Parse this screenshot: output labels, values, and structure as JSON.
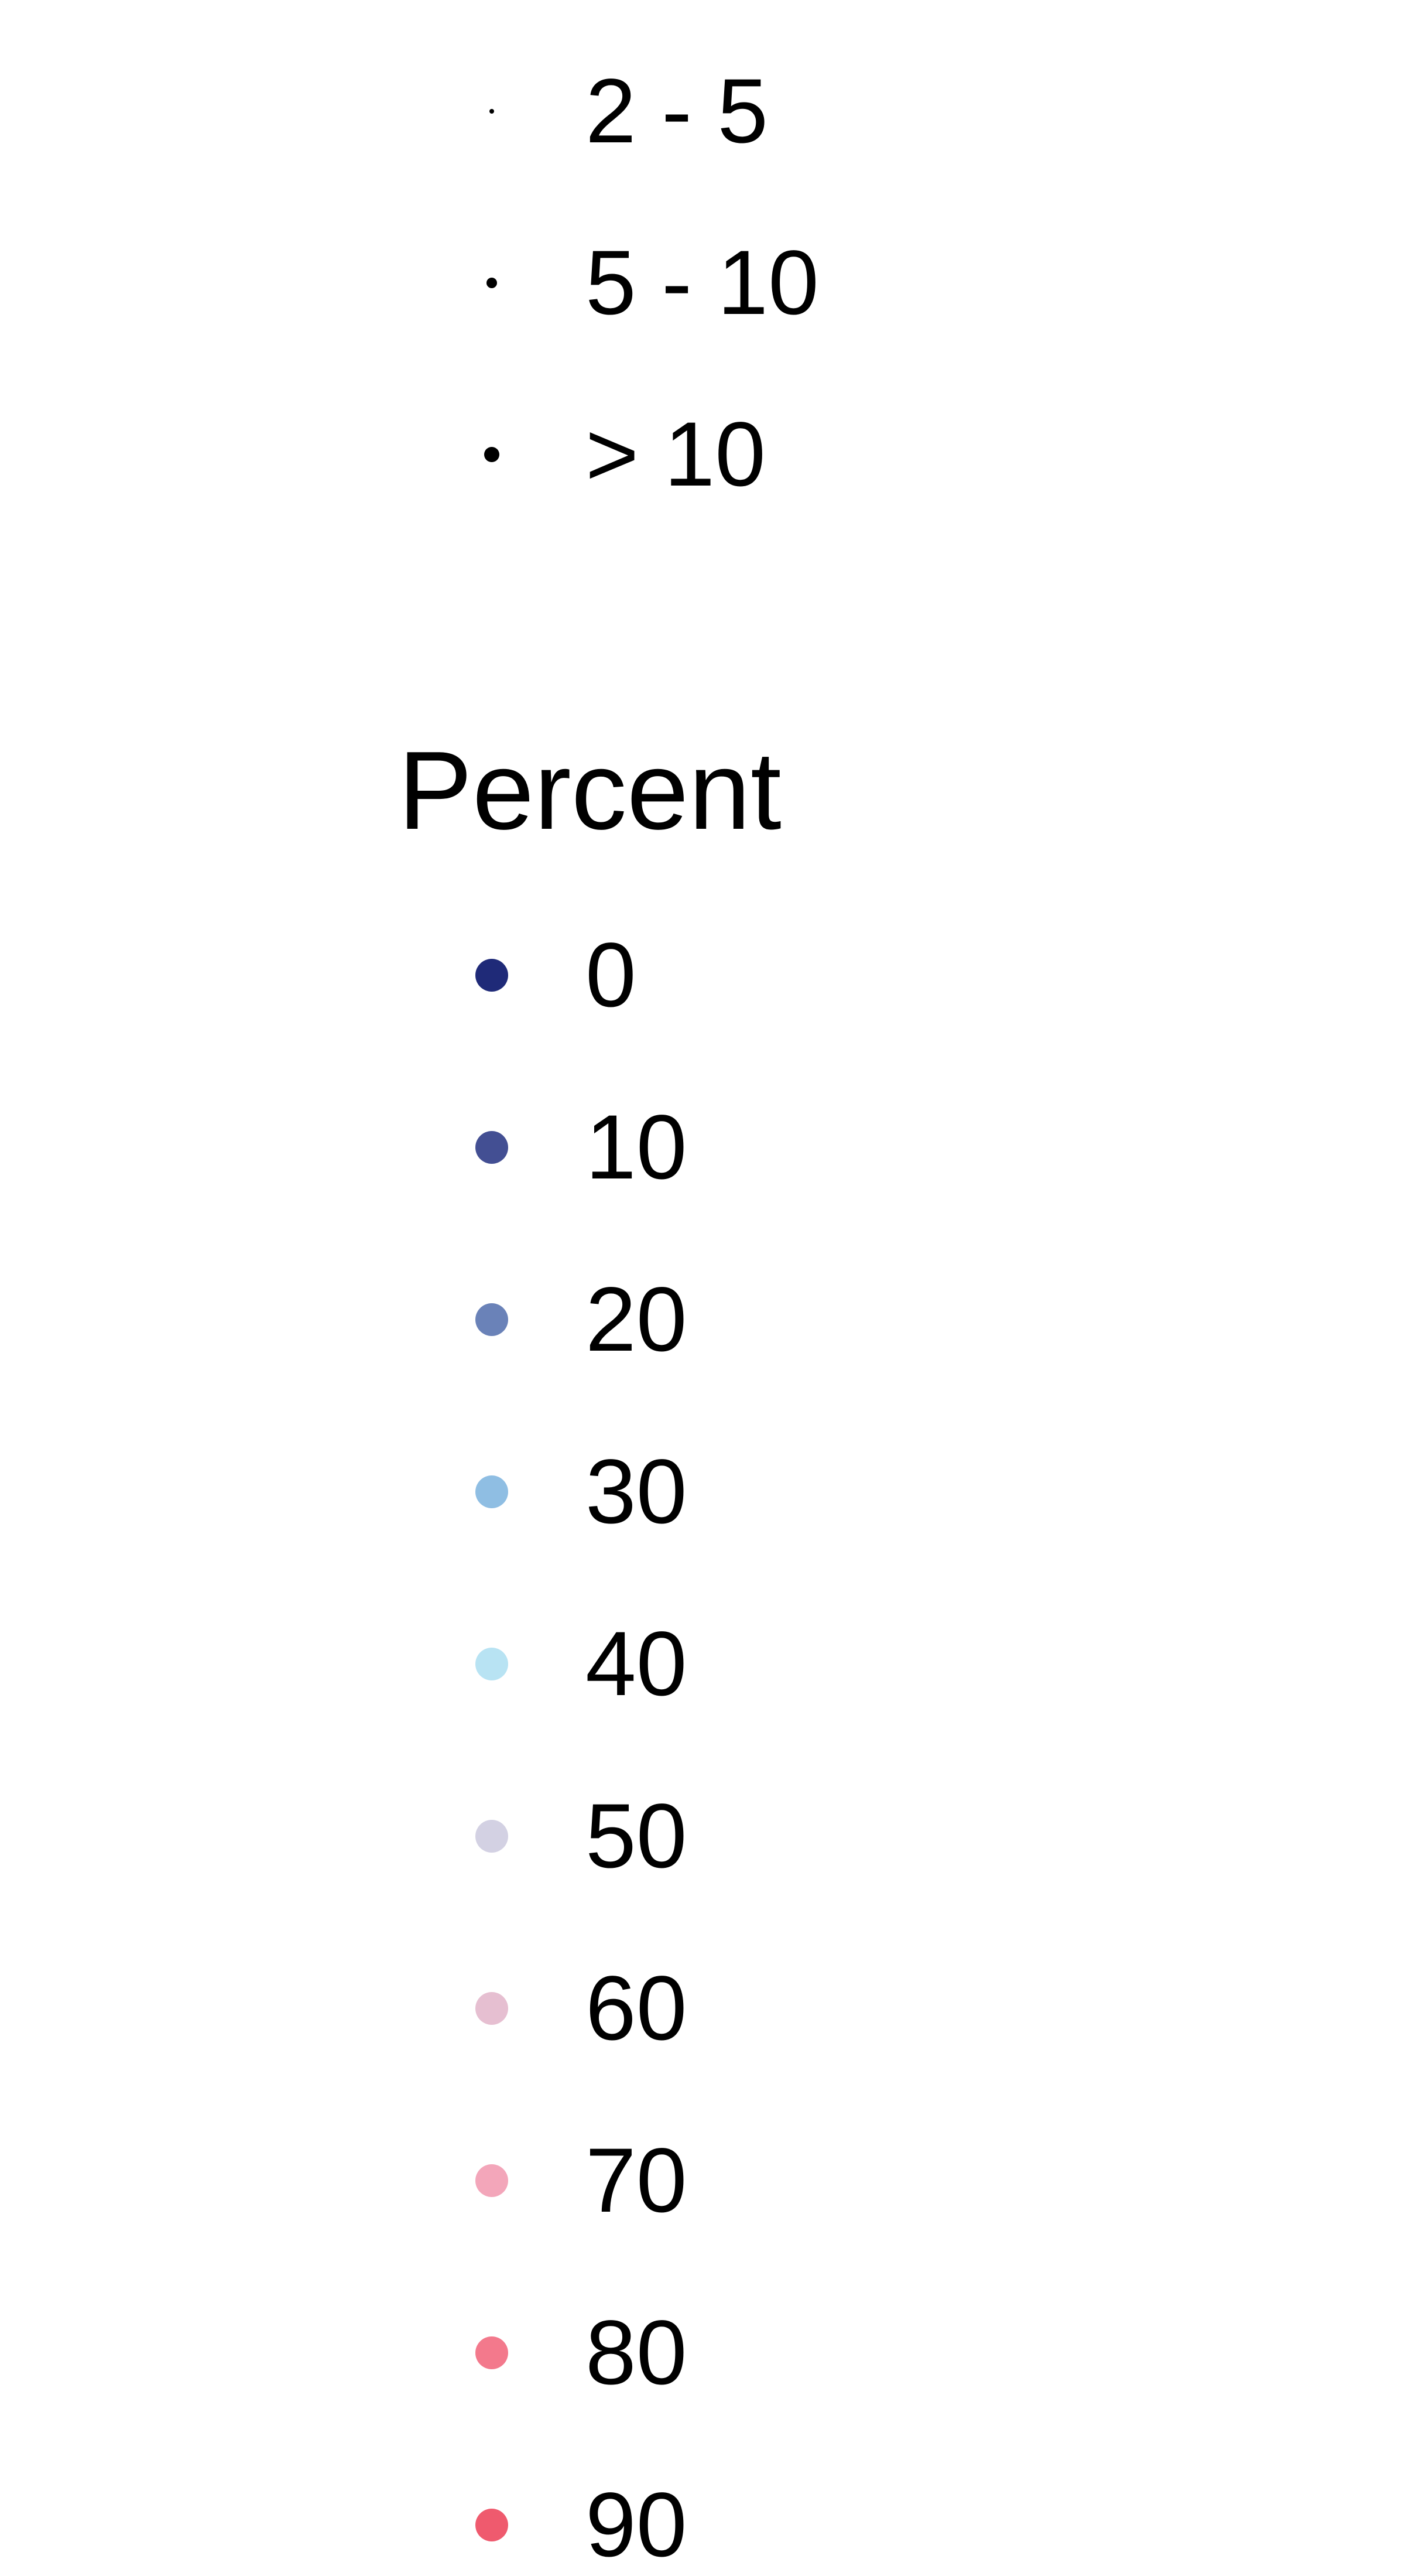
{
  "chart_data": {
    "type": "scatter",
    "legends": [
      {
        "kind": "size",
        "title": "",
        "entries": [
          {
            "label": "2 - 5",
            "size_rank": 1
          },
          {
            "label": "5 - 10",
            "size_rank": 2
          },
          {
            "label": "> 10",
            "size_rank": 3
          }
        ]
      },
      {
        "kind": "color",
        "title": "Percent",
        "entries": [
          {
            "label": "0",
            "value": 0,
            "color": "#1f2a78"
          },
          {
            "label": "10",
            "value": 10,
            "color": "#434f93"
          },
          {
            "label": "20",
            "value": 20,
            "color": "#6a82b8"
          },
          {
            "label": "30",
            "value": 30,
            "color": "#8fbee3"
          },
          {
            "label": "40",
            "value": 40,
            "color": "#b8e3f3"
          },
          {
            "label": "50",
            "value": 50,
            "color": "#d3d1e3"
          },
          {
            "label": "60",
            "value": 60,
            "color": "#e6bfd1"
          },
          {
            "label": "70",
            "value": 70,
            "color": "#f3a6ba"
          },
          {
            "label": "80",
            "value": 80,
            "color": "#f3798c"
          },
          {
            "label": "90",
            "value": 90,
            "color": "#ef5a6e"
          }
        ]
      }
    ]
  }
}
